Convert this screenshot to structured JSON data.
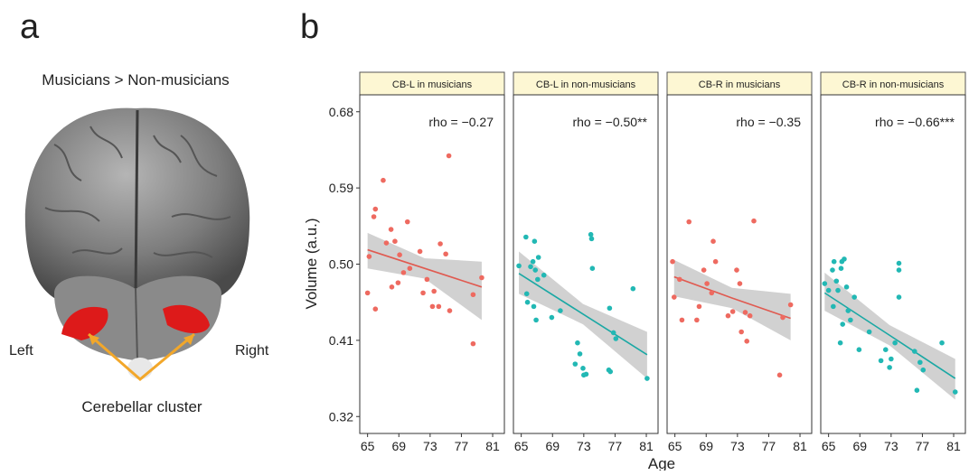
{
  "panel_a": {
    "label": "a",
    "title": "Musicians > Non-musicians",
    "left": "Left",
    "right": "Right",
    "cluster": "Cerebellar cluster"
  },
  "panel_b": {
    "label": "b",
    "y_label": "Volume (a.u.)",
    "x_label": "Age"
  },
  "chart_data": [
    {
      "type": "scatter",
      "title": "CB-L in musicians",
      "annotation": "rho = −0.27",
      "color": "#ee6a60",
      "fit_color": "#e05a50",
      "x": [
        65,
        65.2,
        65.8,
        66,
        66,
        67,
        67.4,
        68,
        68.1,
        68.5,
        68.9,
        69.1,
        69.6,
        70.1,
        70.4,
        71.7,
        72.1,
        72.6,
        73.3,
        73.5,
        74.1,
        74.3,
        75,
        75.4,
        75.5,
        78.5,
        78.5,
        79.6
      ],
      "values": [
        0.466,
        0.509,
        0.556,
        0.565,
        0.447,
        0.599,
        0.525,
        0.541,
        0.473,
        0.527,
        0.478,
        0.511,
        0.49,
        0.55,
        0.495,
        0.515,
        0.466,
        0.482,
        0.45,
        0.468,
        0.45,
        0.524,
        0.512,
        0.628,
        0.445,
        0.406,
        0.464,
        0.484
      ],
      "fit": {
        "x": [
          65,
          72.3,
          79.6
        ],
        "values": [
          0.517,
          0.495,
          0.473
        ],
        "lower": [
          0.495,
          0.483,
          0.434
        ],
        "upper": [
          0.537,
          0.507,
          0.503
        ]
      },
      "xlim": [
        64,
        82.5
      ],
      "ylim": [
        0.3,
        0.7
      ],
      "xticks": [
        65,
        69,
        73,
        77,
        81
      ],
      "yticks": [
        0.32,
        0.41,
        {
          "value": 0.5,
          "label": "0.50"
        },
        0.59,
        0.68
      ]
    },
    {
      "type": "scatter",
      "title": "CB-L in non-musicians",
      "annotation": "rho = −0.50**",
      "color": "#22b8b4",
      "fit_color": "#1aa8a4",
      "x": [
        64.7,
        65.6,
        65.7,
        65.8,
        66.2,
        66.5,
        66.6,
        66.7,
        66.8,
        66.9,
        67.1,
        67.2,
        67.9,
        68.9,
        70,
        71.9,
        72.2,
        72.5,
        72.9,
        73,
        73.3,
        73.9,
        74,
        74.1,
        76.2,
        76.3,
        76.4,
        76.8,
        77.1,
        79.3,
        81.1
      ],
      "values": [
        0.498,
        0.532,
        0.465,
        0.455,
        0.497,
        0.503,
        0.45,
        0.527,
        0.493,
        0.434,
        0.482,
        0.508,
        0.487,
        0.437,
        0.445,
        0.382,
        0.407,
        0.394,
        0.377,
        0.369,
        0.37,
        0.535,
        0.53,
        0.495,
        0.375,
        0.448,
        0.373,
        0.419,
        0.412,
        0.471,
        0.365
      ],
      "fit": {
        "x": [
          64.7,
          72.9,
          81.1
        ],
        "values": [
          0.489,
          0.441,
          0.393
        ],
        "lower": [
          0.465,
          0.429,
          0.365
        ],
        "upper": [
          0.515,
          0.453,
          0.42
        ]
      },
      "xlim": [
        64,
        82.5
      ],
      "ylim": [
        0.3,
        0.7
      ],
      "xticks": [
        65,
        69,
        73,
        77,
        81
      ]
    },
    {
      "type": "scatter",
      "title": "CB-R in musicians",
      "annotation": "rho = −0.35",
      "color": "#ee6a60",
      "fit_color": "#e05a50",
      "x": [
        64.7,
        64.9,
        65.6,
        65.9,
        66.8,
        67.8,
        68.1,
        68.7,
        69.1,
        69.7,
        69.9,
        70.2,
        71.8,
        72.4,
        72.9,
        73.3,
        73.5,
        74,
        74.2,
        75.1,
        74.6,
        78.4,
        78.8,
        79.8
      ],
      "values": [
        0.503,
        0.461,
        0.482,
        0.434,
        0.55,
        0.434,
        0.45,
        0.493,
        0.477,
        0.466,
        0.527,
        0.503,
        0.439,
        0.444,
        0.493,
        0.477,
        0.42,
        0.443,
        0.409,
        0.551,
        0.439,
        0.369,
        0.437,
        0.452
      ],
      "fit": {
        "x": [
          64.9,
          72.3,
          79.8
        ],
        "values": [
          0.485,
          0.46,
          0.436
        ],
        "lower": [
          0.462,
          0.448,
          0.41
        ],
        "upper": [
          0.505,
          0.472,
          0.465
        ]
      },
      "xlim": [
        64,
        82.5
      ],
      "ylim": [
        0.3,
        0.7
      ],
      "xticks": [
        65,
        69,
        73,
        77,
        81
      ]
    },
    {
      "type": "scatter",
      "title": "CB-R in non-musicians",
      "annotation": "rho = −0.66***",
      "color": "#22b8b4",
      "fit_color": "#1aa8a4",
      "x": [
        64.5,
        65,
        65.5,
        65.6,
        65.7,
        66,
        66.2,
        66.5,
        66.6,
        66.7,
        66.8,
        67,
        67.3,
        67.5,
        67.8,
        68.3,
        68.9,
        70.2,
        71.7,
        72.3,
        72.8,
        73,
        73.5,
        74,
        74,
        74,
        76,
        76.3,
        76.7,
        77.1,
        79.5,
        81.2
      ],
      "values": [
        0.477,
        0.469,
        0.493,
        0.45,
        0.503,
        0.48,
        0.469,
        0.407,
        0.495,
        0.503,
        0.429,
        0.506,
        0.473,
        0.445,
        0.434,
        0.461,
        0.399,
        0.42,
        0.386,
        0.399,
        0.378,
        0.388,
        0.407,
        0.501,
        0.493,
        0.461,
        0.397,
        0.351,
        0.384,
        0.375,
        0.407,
        0.349
      ],
      "fit": {
        "x": [
          64.5,
          72.8,
          81.2
        ],
        "values": [
          0.466,
          0.416,
          0.365
        ],
        "lower": [
          0.445,
          0.404,
          0.34
        ],
        "upper": [
          0.49,
          0.428,
          0.388
        ]
      },
      "xlim": [
        64,
        82.5
      ],
      "ylim": [
        0.3,
        0.7
      ],
      "xticks": [
        65,
        69,
        73,
        77,
        81
      ]
    }
  ]
}
